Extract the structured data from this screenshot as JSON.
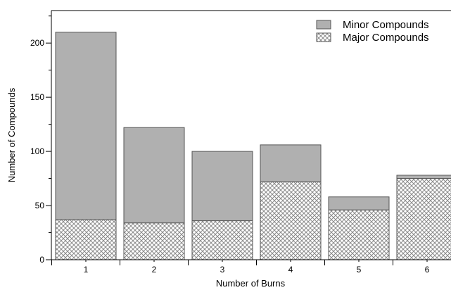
{
  "chart_data": {
    "type": "bar",
    "stacked": true,
    "categories": [
      "1",
      "2",
      "3",
      "4",
      "5",
      "6"
    ],
    "series": [
      {
        "name": "Major Compounds",
        "values": [
          37,
          34,
          36,
          72,
          46,
          75
        ],
        "pattern": "diamond-hatch"
      },
      {
        "name": "Minor Compounds",
        "values": [
          173,
          88,
          64,
          34,
          12,
          3
        ],
        "color": "#b0b0b0"
      }
    ],
    "xlabel": "Number of Burns",
    "ylabel": "Number of Compounds",
    "ylim": [
      0,
      230
    ],
    "yticks": [
      0,
      50,
      100,
      150,
      200
    ],
    "grid": false,
    "legend_position": "top-right"
  }
}
